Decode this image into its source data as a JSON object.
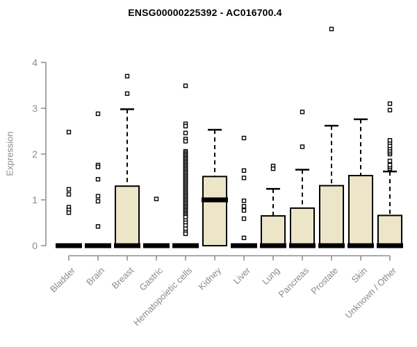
{
  "chart_data": {
    "type": "boxplot",
    "title": "ENSG00000225392 - AC016700.4",
    "ylabel": "Expression",
    "xlabel": "",
    "ylim": [
      0,
      4
    ],
    "yticks": [
      0,
      1,
      2,
      3,
      4
    ],
    "grid": false,
    "legend": "none",
    "box_fill": "#ece5c8",
    "box_border": "#000000",
    "axis_color": "#8a8a8a",
    "categories": [
      "Bladder",
      "Brain",
      "Breast",
      "Gastric",
      "Hematopoietic cells",
      "Kidney",
      "Liver",
      "Lung",
      "Pancreas",
      "Prostate",
      "Skin",
      "Unknown / Other"
    ],
    "series": [
      {
        "category": "Bladder",
        "q1": 0,
        "median": 0,
        "q3": 0,
        "whisker_low": 0,
        "whisker_high": 0,
        "outliers": [
          2.48,
          1.23,
          1.12,
          0.84,
          0.78,
          0.72
        ]
      },
      {
        "category": "Brain",
        "q1": 0,
        "median": 0,
        "q3": 0,
        "whisker_low": 0,
        "whisker_high": 0,
        "outliers": [
          2.88,
          1.76,
          1.72,
          1.45,
          1.08,
          0.97,
          0.42
        ]
      },
      {
        "category": "Breast",
        "q1": 0,
        "median": 0,
        "q3": 1.3,
        "whisker_low": 0,
        "whisker_high": 2.98,
        "outliers": [
          3.7,
          3.32
        ]
      },
      {
        "category": "Gastric",
        "q1": 0,
        "median": 0,
        "q3": 0,
        "whisker_low": 0,
        "whisker_high": 0,
        "outliers": [
          1.02
        ]
      },
      {
        "category": "Hematopoietic cells",
        "q1": 0,
        "median": 0,
        "q3": 0,
        "whisker_low": 0,
        "whisker_high": 0,
        "outliers": [
          3.49,
          2.66,
          2.61,
          2.46,
          2.33,
          2.28,
          2.06,
          2.03,
          2.0,
          1.97,
          1.94,
          1.91,
          1.88,
          1.85,
          1.82,
          1.79,
          1.76,
          1.73,
          1.7,
          1.67,
          1.64,
          1.61,
          1.58,
          1.55,
          1.52,
          1.49,
          1.46,
          1.43,
          1.4,
          1.37,
          1.34,
          1.31,
          1.28,
          1.25,
          1.22,
          1.19,
          1.16,
          1.13,
          1.1,
          1.07,
          1.04,
          1.01,
          0.98,
          0.95,
          0.92,
          0.89,
          0.86,
          0.83,
          0.8,
          0.77,
          0.74,
          0.71,
          0.68,
          0.65,
          0.62,
          0.55,
          0.5,
          0.44,
          0.37,
          0.3,
          0.26
        ]
      },
      {
        "category": "Kidney",
        "q1": 0,
        "median": 1.0,
        "q3": 1.51,
        "whisker_low": 0,
        "whisker_high": 2.53,
        "outliers": []
      },
      {
        "category": "Liver",
        "q1": 0,
        "median": 0,
        "q3": 0,
        "whisker_low": 0,
        "whisker_high": 0,
        "outliers": [
          2.35,
          1.64,
          1.48,
          0.98,
          0.86,
          0.77,
          0.59,
          0.17
        ]
      },
      {
        "category": "Lung",
        "q1": 0,
        "median": 0,
        "q3": 0.65,
        "whisker_low": 0,
        "whisker_high": 1.24,
        "outliers": [
          1.74,
          1.68
        ]
      },
      {
        "category": "Pancreas",
        "q1": 0,
        "median": 0,
        "q3": 0.82,
        "whisker_low": 0,
        "whisker_high": 1.66,
        "outliers": [
          2.92,
          2.16
        ]
      },
      {
        "category": "Prostate",
        "q1": 0,
        "median": 0,
        "q3": 1.31,
        "whisker_low": 0,
        "whisker_high": 2.62,
        "outliers": [
          4.73
        ]
      },
      {
        "category": "Skin",
        "q1": 0,
        "median": 0,
        "q3": 1.53,
        "whisker_low": 0,
        "whisker_high": 2.76,
        "outliers": []
      },
      {
        "category": "Unknown / Other",
        "q1": 0,
        "median": 0,
        "q3": 0.66,
        "whisker_low": 0,
        "whisker_high": 1.62,
        "outliers": [
          1.68,
          1.72,
          1.76,
          1.85,
          2.0,
          2.04,
          2.08,
          2.13,
          2.18,
          2.25,
          2.3,
          2.96,
          3.1
        ]
      }
    ]
  }
}
